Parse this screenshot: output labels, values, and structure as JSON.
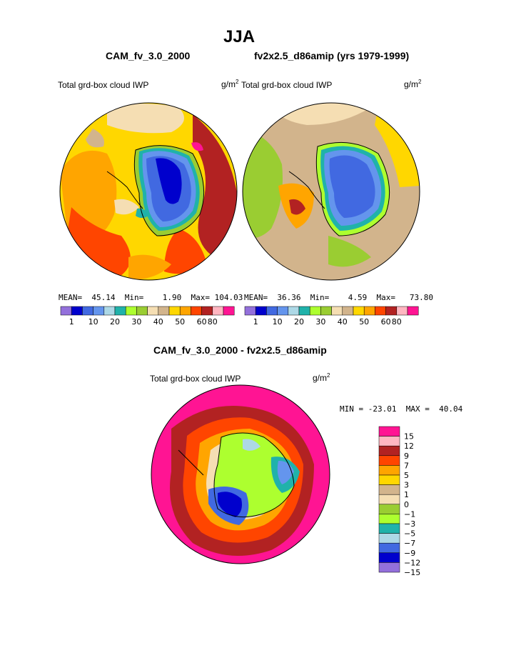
{
  "title": "JJA",
  "panels": {
    "left": {
      "case": "CAM_fv_3.0_2000",
      "variable": "Total grd-box cloud IWP",
      "units": "g/m",
      "units_sup": "2",
      "stats": {
        "mean_label": "MEAN=",
        "mean": "45.14",
        "min_label": "Min=",
        "min": "1.90",
        "max_label": "Max=",
        "max": "104.03"
      }
    },
    "right": {
      "case": "fv2x2.5_d86amip (yrs 1979-1999)",
      "variable": "Total grd-box cloud IWP",
      "units": "g/m",
      "units_sup": "2",
      "stats": {
        "mean_label": "MEAN=",
        "mean": "36.36",
        "min_label": "Min=",
        "min": "4.59",
        "max_label": "Max=",
        "max": "73.80"
      }
    },
    "diff": {
      "case": "CAM_fv_3.0_2000 - fv2x2.5_d86amip",
      "variable": "Total grd-box cloud IWP",
      "units": "g/m",
      "units_sup": "2",
      "stats_text": "MIN = -23.01  MAX =  40.04"
    }
  },
  "colorbar_abs": {
    "colors": [
      "#9370db",
      "#0000cd",
      "#4169e1",
      "#6495ed",
      "#add8e6",
      "#20b2aa",
      "#adff2f",
      "#9acd32",
      "#f5deb3",
      "#d2b48c",
      "#ffd700",
      "#ffa500",
      "#ff4500",
      "#b22222",
      "#ffb6c1",
      "#ff1493"
    ],
    "labels": [
      "1",
      "10",
      "20",
      "30",
      "40",
      "50",
      "60",
      "80"
    ]
  },
  "colorbar_diff": {
    "colors": [
      "#ff1493",
      "#ffb6c1",
      "#b22222",
      "#ff4500",
      "#ffa500",
      "#ffd700",
      "#d2b48c",
      "#f5deb3",
      "#9acd32",
      "#adff2f",
      "#20b2aa",
      "#add8e6",
      "#4169e1",
      "#0000cd",
      "#9370db"
    ],
    "labels": [
      "15",
      "12",
      "9",
      "7",
      "5",
      "3",
      "1",
      "0",
      "−1",
      "−3",
      "−5",
      "−7",
      "−9",
      "−12",
      "−15"
    ]
  }
}
